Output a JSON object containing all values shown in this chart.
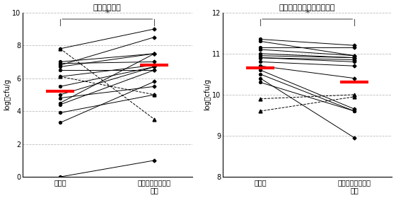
{
  "title_left": "》乳酸菌数》",
  "title_right": "》バクテロイデス属菌数》",
  "title_left_display": "[乳酸菌数]",
  "title_right_display": "[バクテロイデス属菌数]",
  "ylabel": "log・cfu/g",
  "xlabel_before": "摂取前",
  "xlabel_after": "ラブレ菌カプセル\n摂取",
  "significance": "*",
  "lactic_solid_before": [
    0.0,
    3.3,
    3.9,
    4.4,
    4.5,
    4.8,
    5.0,
    5.5,
    6.1,
    6.5,
    6.7,
    6.8,
    6.9,
    7.0,
    7.8
  ],
  "lactic_solid_after": [
    1.0,
    5.8,
    5.0,
    6.5,
    7.5,
    5.5,
    6.7,
    6.7,
    6.8,
    6.5,
    7.5,
    8.5,
    7.0,
    7.5,
    9.0
  ],
  "lactic_dashed_before": [
    6.1,
    7.8
  ],
  "lactic_dashed_after": [
    5.0,
    3.5
  ],
  "lactic_mean_before": 5.2,
  "lactic_mean_after": 6.8,
  "lactic_ylim": [
    0,
    10
  ],
  "lactic_yticks": [
    0,
    2,
    4,
    6,
    8,
    10
  ],
  "bact_solid_before": [
    10.4,
    10.6,
    10.7,
    10.8,
    10.9,
    10.9,
    10.95,
    11.0,
    11.1,
    11.3,
    11.35,
    11.15
  ],
  "bact_solid_after": [
    8.95,
    9.65,
    10.4,
    10.7,
    10.8,
    10.85,
    10.9,
    10.9,
    10.95,
    10.95,
    11.2,
    11.15
  ],
  "bact_dashed_before": [
    9.9,
    9.6
  ],
  "bact_dashed_after": [
    10.0,
    9.95
  ],
  "bact_solid2_before": [
    10.3,
    10.5
  ],
  "bact_solid2_after": [
    9.6,
    9.6
  ],
  "bacteroides_mean_before": 10.65,
  "bacteroides_mean_after": 10.3,
  "bacteroides_ylim": [
    8,
    12
  ],
  "bacteroides_yticks": [
    8,
    9,
    10,
    11,
    12
  ],
  "line_color": "#000000",
  "mean_color": "#ff0000",
  "bg_color": "#ffffff",
  "grid_color": "#bbbbbb"
}
